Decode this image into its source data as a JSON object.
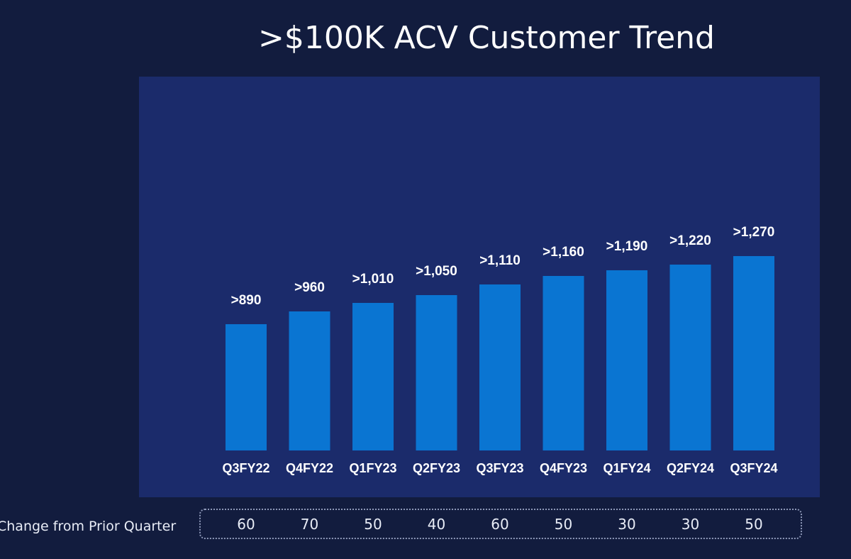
{
  "chart_data": {
    "type": "bar",
    "title": ">$100K ACV Customer Trend",
    "categories": [
      "Q3FY22",
      "Q4FY22",
      "Q1FY23",
      "Q2FY23",
      "Q3FY23",
      "Q4FY23",
      "Q1FY24",
      "Q2FY24",
      "Q3FY24"
    ],
    "values": [
      890,
      960,
      1010,
      1050,
      1110,
      1160,
      1190,
      1220,
      1270
    ],
    "data_labels": [
      ">890",
      ">960",
      ">1,010",
      ">1,050",
      ">1,110",
      ">1,160",
      ">1,190",
      ">1,220",
      ">1,270"
    ],
    "xlabel": "",
    "ylabel": "",
    "ylim": [
      0,
      1400
    ],
    "grid": false,
    "legend": "none"
  },
  "change": {
    "label": "Change from Prior Quarter",
    "values": [
      "60",
      "70",
      "50",
      "40",
      "60",
      "50",
      "30",
      "30",
      "50"
    ]
  },
  "colors": {
    "background": "#121c3e",
    "panel": "#1b2b6b",
    "bar": "#0a75d2",
    "text": "#ffffff"
  }
}
